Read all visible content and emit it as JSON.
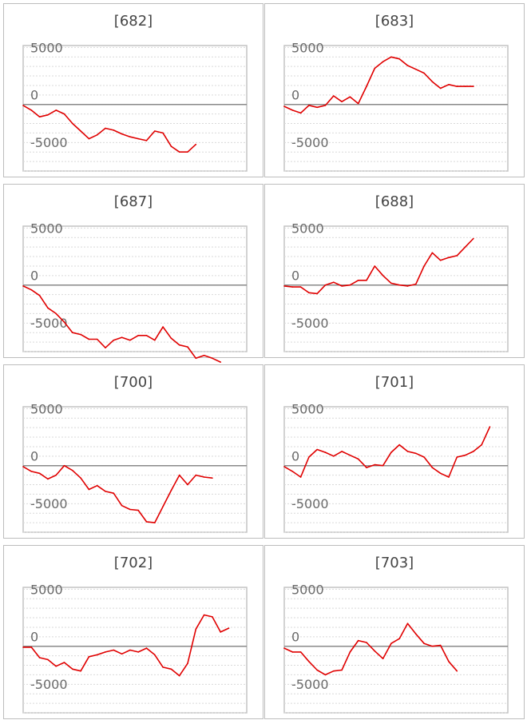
{
  "chart_data": [
    {
      "type": "line",
      "title": "[682]",
      "ytick_labels": [
        "5000",
        "0",
        "-5000"
      ],
      "ylim": [
        -7000,
        6200
      ],
      "grid": true,
      "zero_line": true,
      "line_color": "#e00000",
      "values": [
        -100,
        -600,
        -1300,
        -1100,
        -600,
        -1000,
        -2000,
        -2800,
        -3600,
        -3200,
        -2500,
        -2700,
        -3100,
        -3400,
        -3600,
        -3800,
        -2800,
        -3000,
        -4400,
        -5000,
        -5000,
        -4200
      ]
    },
    {
      "type": "line",
      "title": "[683]",
      "ytick_labels": [
        "5000",
        "0",
        "-5000"
      ],
      "ylim": [
        -7000,
        6200
      ],
      "grid": true,
      "zero_line": true,
      "line_color": "#e00000",
      "values": [
        -200,
        -600,
        -900,
        -100,
        -300,
        -100,
        900,
        300,
        800,
        100,
        1900,
        3800,
        4500,
        5000,
        4800,
        4100,
        3700,
        3300,
        2400,
        1700,
        2100,
        1900,
        1900,
        1900
      ]
    },
    {
      "type": "line",
      "title": "[687]",
      "ytick_labels": [
        "5000",
        "0",
        "-5000"
      ],
      "ylim": [
        -7000,
        6200
      ],
      "grid": true,
      "zero_line": true,
      "line_color": "#e00000",
      "values": [
        -100,
        -500,
        -1100,
        -2400,
        -3000,
        -3900,
        -5000,
        -5200,
        -5700,
        -5700,
        -6600,
        -5800,
        -5500,
        -5800,
        -5300,
        -5300,
        -5800,
        -4400,
        -5600,
        -6300,
        -6500,
        -7700,
        -7400,
        -7700,
        -8100
      ]
    },
    {
      "type": "line",
      "title": "[688]",
      "ytick_labels": [
        "5000",
        "0",
        "-5000"
      ],
      "ylim": [
        -7000,
        6200
      ],
      "grid": true,
      "zero_line": true,
      "line_color": "#e00000",
      "values": [
        -100,
        -200,
        -200,
        -800,
        -900,
        0,
        300,
        -100,
        0,
        500,
        500,
        2000,
        1000,
        200,
        0,
        -100,
        100,
        2000,
        3400,
        2600,
        2900,
        3100,
        4000,
        4900
      ]
    },
    {
      "type": "line",
      "title": "[700]",
      "ytick_labels": [
        "5000",
        "0",
        "-5000"
      ],
      "ylim": [
        -7000,
        6200
      ],
      "grid": true,
      "zero_line": true,
      "line_color": "#e00000",
      "values": [
        -100,
        -600,
        -800,
        -1400,
        -1000,
        0,
        -500,
        -1300,
        -2500,
        -2100,
        -2700,
        -2900,
        -4200,
        -4600,
        -4700,
        -5900,
        -6000,
        -4300,
        -2600,
        -1000,
        -2000,
        -1000,
        -1200,
        -1300
      ]
    },
    {
      "type": "line",
      "title": "[701]",
      "ytick_labels": [
        "5000",
        "0",
        "-5000"
      ],
      "ylim": [
        -7000,
        6200
      ],
      "grid": true,
      "zero_line": true,
      "line_color": "#e00000",
      "values": [
        -100,
        -600,
        -1200,
        900,
        1700,
        1400,
        1000,
        1500,
        1100,
        700,
        -200,
        100,
        0,
        1400,
        2200,
        1500,
        1300,
        900,
        -200,
        -800,
        -1200,
        900,
        1100,
        1500,
        2200,
        4100
      ]
    },
    {
      "type": "line",
      "title": "[702]",
      "ytick_labels": [
        "5000",
        "0",
        "-5000"
      ],
      "ylim": [
        -7000,
        6200
      ],
      "grid": true,
      "zero_line": true,
      "line_color": "#e00000",
      "values": [
        -100,
        -100,
        -1200,
        -1400,
        -2100,
        -1700,
        -2400,
        -2600,
        -1100,
        -900,
        -600,
        -400,
        -800,
        -400,
        -600,
        -200,
        -900,
        -2200,
        -2400,
        -3100,
        -1800,
        1800,
        3300,
        3100,
        1500,
        1900
      ]
    },
    {
      "type": "line",
      "title": "[703]",
      "ytick_labels": [
        "5000",
        "0",
        "-5000"
      ],
      "ylim": [
        -7000,
        6200
      ],
      "grid": true,
      "zero_line": true,
      "line_color": "#e00000",
      "values": [
        -200,
        -600,
        -600,
        -1600,
        -2500,
        -3000,
        -2600,
        -2500,
        -600,
        600,
        400,
        -500,
        -1300,
        300,
        800,
        2400,
        1300,
        300,
        0,
        100,
        -1600,
        -2600
      ]
    }
  ]
}
